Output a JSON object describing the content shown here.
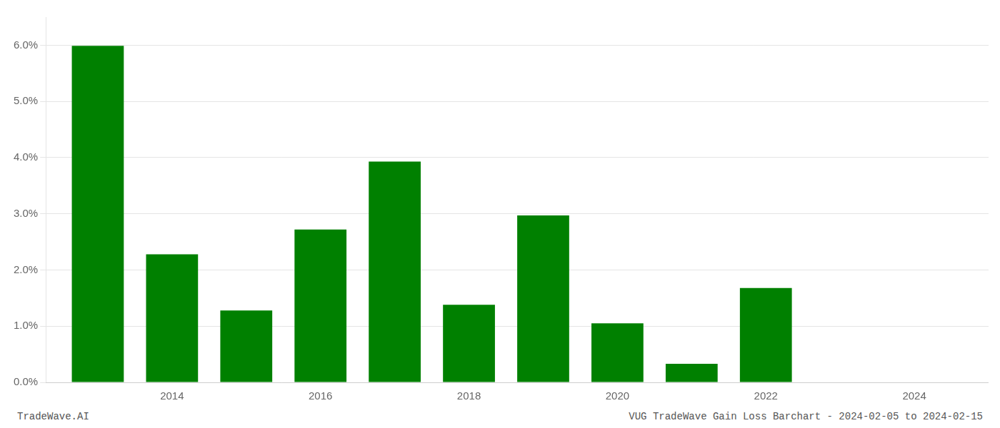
{
  "chart_data": {
    "type": "bar",
    "x": [
      2013,
      2014,
      2015,
      2016,
      2017,
      2018,
      2019,
      2020,
      2021,
      2022,
      2023
    ],
    "values": [
      0.0599,
      0.0228,
      0.0128,
      0.0272,
      0.0393,
      0.0138,
      0.0297,
      0.0105,
      0.0033,
      0.0168,
      0.0
    ],
    "color": "#008000",
    "xlim": [
      2012.3,
      2025.0
    ],
    "xticks": [
      2014,
      2016,
      2018,
      2020,
      2022,
      2024
    ],
    "ylim": [
      0,
      0.065
    ],
    "yticks": [
      {
        "value": 0.0,
        "label": "0.0%"
      },
      {
        "value": 0.01,
        "label": "1.0%"
      },
      {
        "value": 0.02,
        "label": "2.0%"
      },
      {
        "value": 0.03,
        "label": "3.0%"
      },
      {
        "value": 0.04,
        "label": "4.0%"
      },
      {
        "value": 0.05,
        "label": "5.0%"
      },
      {
        "value": 0.06,
        "label": "6.0%"
      }
    ],
    "grid": "y",
    "annotations": [
      {
        "text": "TradeWave.AI",
        "color": "#555555"
      },
      {
        "text": "VUG TradeWave Gain Loss Barchart - 2024-02-05 to 2024-02-15",
        "color": "#555555"
      }
    ]
  }
}
